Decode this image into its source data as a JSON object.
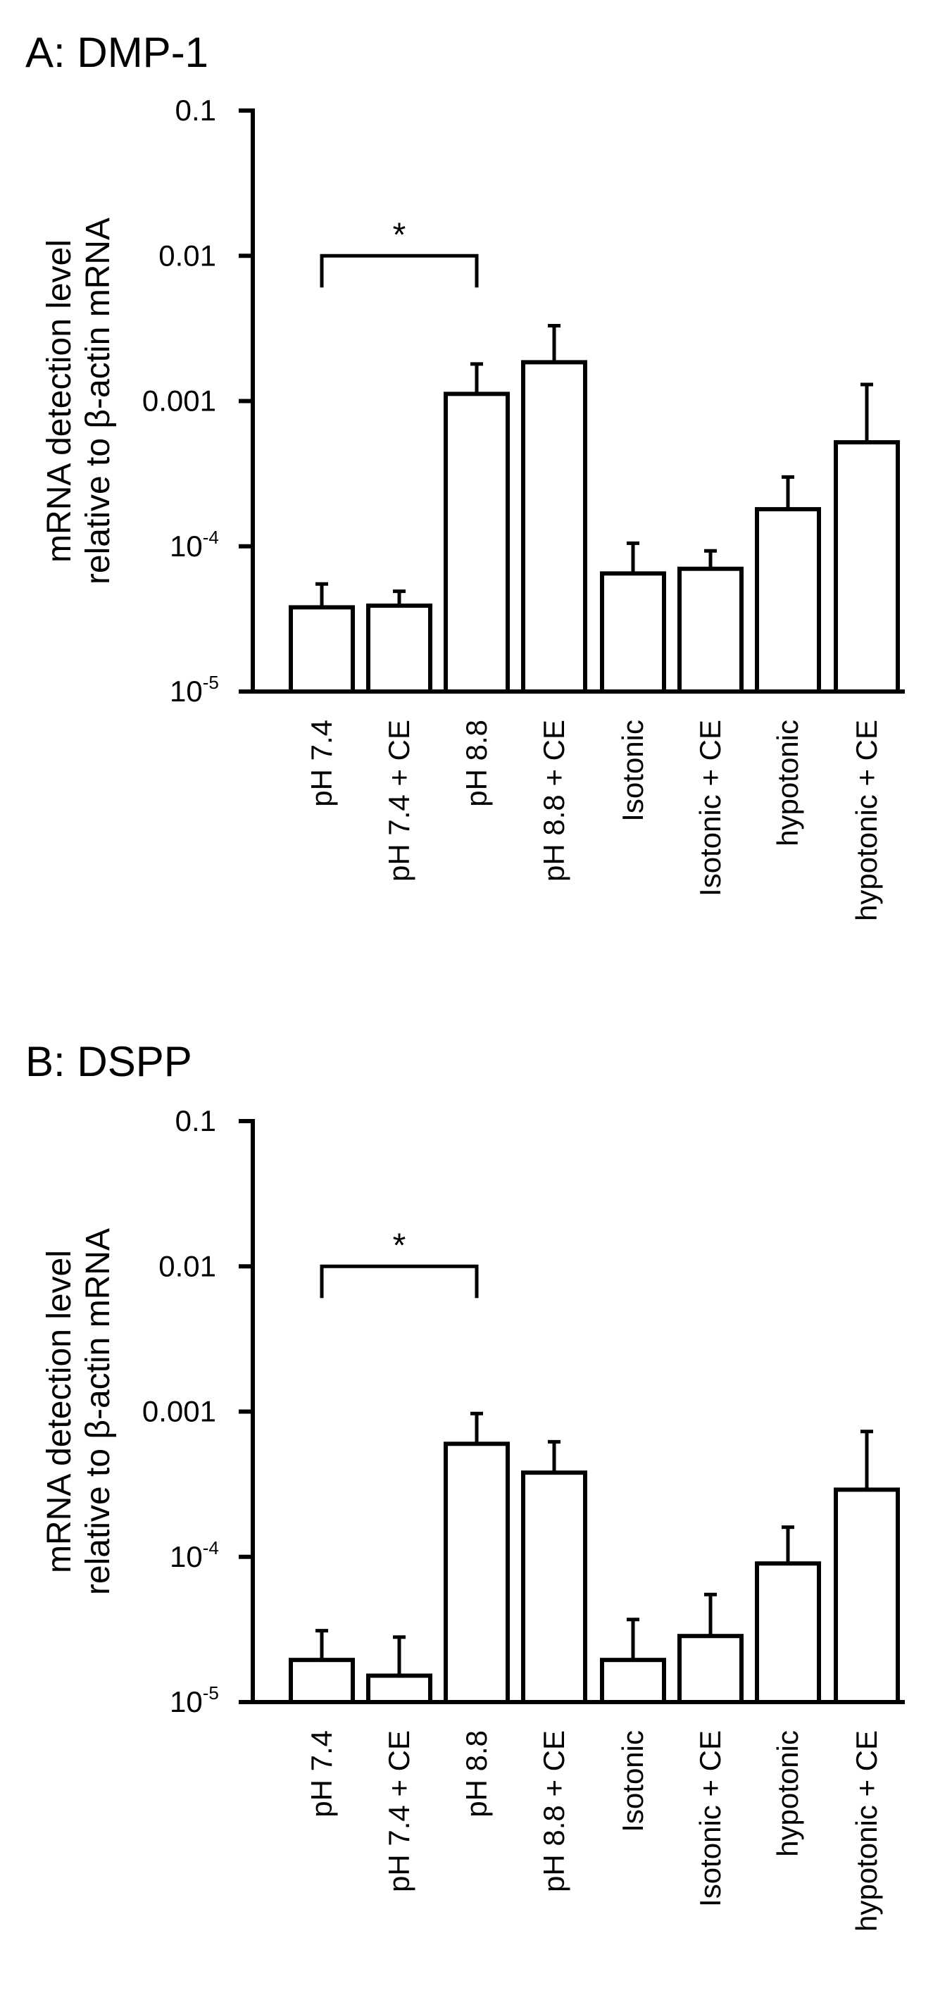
{
  "chart_data": [
    {
      "type": "bar",
      "title": "A: DMP-1",
      "ylabel": [
        "mRNA detection level",
        "relative to β-actin mRNA"
      ],
      "yscale": "log",
      "ylim": [
        1e-05,
        0.1
      ],
      "yticks": [
        {
          "value": 0.1,
          "base": "0.1",
          "exp": ""
        },
        {
          "value": 0.01,
          "base": "0.01",
          "exp": ""
        },
        {
          "value": 0.001,
          "base": "0.001",
          "exp": ""
        },
        {
          "value": 0.0001,
          "base": "10",
          "exp": "-4"
        },
        {
          "value": 1e-05,
          "base": "10",
          "exp": "-5"
        }
      ],
      "categories": [
        "pH 7.4",
        "pH 7.4 + CE",
        "pH 8.8",
        "pH 8.8 + CE",
        "Isotonic",
        "Isotonic + CE",
        "hypotonic",
        "hypotonic + CE"
      ],
      "values": [
        3.8e-05,
        3.9e-05,
        0.00112,
        0.00185,
        6.5e-05,
        7e-05,
        0.00018,
        0.00052
      ],
      "error_upper": [
        5.5e-05,
        4.9e-05,
        0.0018,
        0.0033,
        0.000105,
        9.3e-05,
        0.0003,
        0.0013
      ],
      "significance": {
        "from": "pH 7.4",
        "to": "pH 8.8",
        "label": "*"
      },
      "grid": false,
      "legend": "none"
    },
    {
      "type": "bar",
      "title": "B: DSPP",
      "ylabel": [
        "mRNA  detection level",
        "relative to β-actin mRNA"
      ],
      "yscale": "log",
      "ylim": [
        1e-05,
        0.1
      ],
      "yticks": [
        {
          "value": 0.1,
          "base": "0.1",
          "exp": ""
        },
        {
          "value": 0.01,
          "base": "0.01",
          "exp": ""
        },
        {
          "value": 0.001,
          "base": "0.001",
          "exp": ""
        },
        {
          "value": 0.0001,
          "base": "10",
          "exp": "-4"
        },
        {
          "value": 1e-05,
          "base": "10",
          "exp": "-5"
        }
      ],
      "categories": [
        "pH 7.4",
        "pH 7.4 + CE",
        "pH 8.8",
        "pH 8.8 + CE",
        "Isotonic",
        "Isotonic + CE",
        "hypotonic",
        "hypotonic + CE"
      ],
      "values": [
        1.95e-05,
        1.52e-05,
        0.0006,
        0.00038,
        1.95e-05,
        2.85e-05,
        9e-05,
        0.00029
      ],
      "error_upper": [
        3.1e-05,
        2.8e-05,
        0.00097,
        0.00062,
        3.7e-05,
        5.5e-05,
        0.00016,
        0.00073
      ],
      "significance": {
        "from": "pH 7.4",
        "to": "pH 8.8",
        "label": "*"
      },
      "grid": false,
      "legend": "none"
    }
  ]
}
